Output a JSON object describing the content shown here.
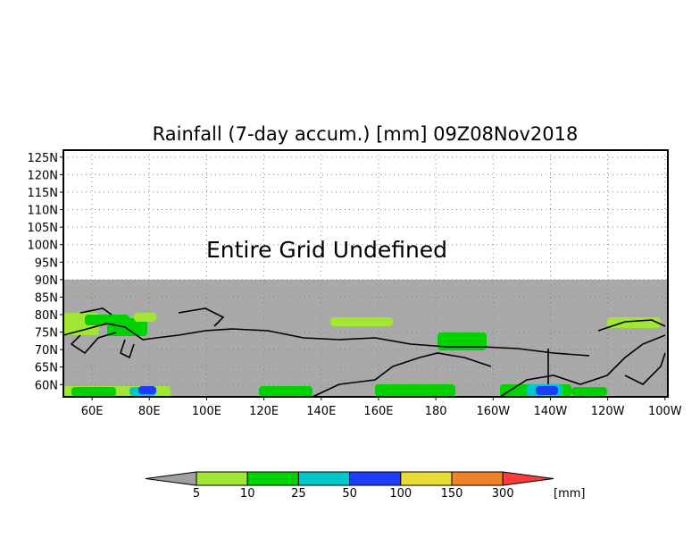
{
  "title": "Rainfall (7-day accum.) [mm] 09Z08Nov2018",
  "annotation": "Entire Grid Undefined",
  "map": {
    "lat_ticks": [
      "125N",
      "120N",
      "115N",
      "110N",
      "105N",
      "100N",
      "95N",
      "90N",
      "85N",
      "80N",
      "75N",
      "70N",
      "65N",
      "60N"
    ],
    "lat_values": [
      125,
      120,
      115,
      110,
      105,
      100,
      95,
      90,
      85,
      80,
      75,
      70,
      65,
      60
    ],
    "lon_ticks": [
      "60E",
      "80E",
      "100E",
      "120E",
      "140E",
      "160E",
      "180",
      "160W",
      "140W",
      "120W",
      "100W"
    ],
    "lon_values": [
      60,
      80,
      100,
      120,
      140,
      160,
      180,
      200,
      220,
      240,
      260
    ],
    "lat_range": [
      56.5,
      127
    ],
    "lon_range": [
      50,
      261
    ],
    "undefined_color": "#a9a9a9"
  },
  "colorbar": {
    "labels": [
      "5",
      "10",
      "25",
      "50",
      "100",
      "150",
      "300"
    ],
    "colors": [
      "#a0a0a0",
      "#a0e632",
      "#00d200",
      "#00c8c8",
      "#1e3cff",
      "#e6dc32",
      "#f08228",
      "#fa3c3c"
    ],
    "unit": "[mm]"
  }
}
